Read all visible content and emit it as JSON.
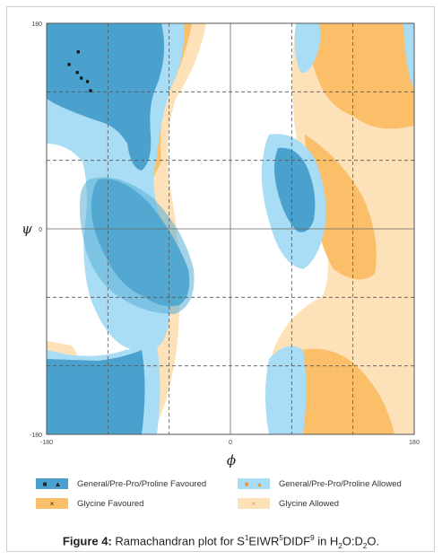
{
  "chart_data": {
    "type": "scatter",
    "title": "",
    "xlabel": "ϕ",
    "ylabel": "ψ",
    "xlim": [
      -180,
      180
    ],
    "ylim": [
      -180,
      180
    ],
    "x_ticks": [
      -180,
      0,
      180
    ],
    "y_ticks": [
      -180,
      0,
      180
    ],
    "x_tick_labels": [
      "-180",
      "0",
      "180"
    ],
    "y_tick_labels": [
      "-180",
      "0",
      "180"
    ],
    "grid": true,
    "grid_style": "dashed",
    "grid_values": [
      -120,
      -60,
      60,
      120
    ],
    "points": [
      {
        "x": -149,
        "y": 155,
        "marker": "square"
      },
      {
        "x": -158,
        "y": 144,
        "marker": "square"
      },
      {
        "x": -150,
        "y": 137,
        "marker": "square"
      },
      {
        "x": -146,
        "y": 132,
        "marker": "square"
      },
      {
        "x": -140,
        "y": 129,
        "marker": "square"
      },
      {
        "x": -137,
        "y": 121,
        "marker": "square"
      }
    ],
    "legend": {
      "placement": "bottom",
      "entries": [
        {
          "label": "General/Pre-Pro/Proline Favoured",
          "symbols": [
            "■",
            "▲"
          ],
          "color": "#4aa1cd"
        },
        {
          "label": "General/Pre-Pro/Proline Allowed",
          "symbols": [
            "■",
            "▲"
          ],
          "color": "#a9dcf5"
        },
        {
          "label": "Glycine Favoured",
          "symbols": [
            "×"
          ],
          "color": "#fbbf6a"
        },
        {
          "label": "Glycine Allowed",
          "symbols": [
            "×"
          ],
          "color": "#fde1b8"
        }
      ]
    },
    "colors": {
      "general_favoured": "#4aa1cd",
      "general_allowed": "#a9dcf5",
      "glycine_favoured": "#fbbf6a",
      "glycine_allowed": "#fde1b8"
    }
  },
  "caption": {
    "label": "Figure 4:",
    "text_pre": " Ramachandran plot for S",
    "sup1": "1",
    "text_mid1": "EIWR",
    "sup2": "5",
    "text_mid2": "DIDF",
    "sup3": "9",
    "text_mid3": " in H",
    "sub1": "2",
    "text_mid4": "O:D",
    "sub2": "2",
    "text_post": "O."
  }
}
